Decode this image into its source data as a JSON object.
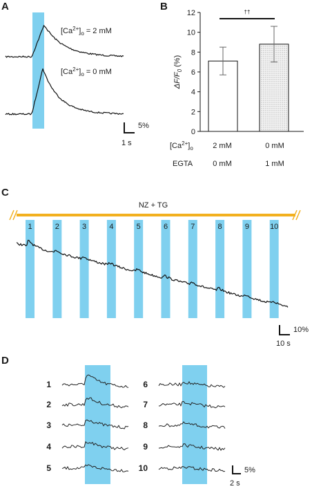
{
  "colors": {
    "stim": "#7fd0ef",
    "bar_line": "#f2b01e",
    "trace": "#111111",
    "bar_fill_b": "#e6e6e6"
  },
  "panels": {
    "a": {
      "label": "A",
      "trace1_label_pre": "[Ca",
      "trace1_label_sup": "2+",
      "trace1_label_post": "]",
      "trace1_label_sub": "o",
      "trace1_label_val": " = 2 mM",
      "trace2_label_pre": "[Ca",
      "trace2_label_sup": "2+",
      "trace2_label_post": "]",
      "trace2_label_sub": "o",
      "trace2_label_val": " = 0 mM",
      "scale_y": "5%",
      "scale_x": "1 s"
    },
    "b": {
      "label": "B",
      "ylabel_delta": "ΔF/F",
      "ylabel_sub": "0",
      "ylabel_unit": " (%)",
      "sig_mark": "††",
      "row1_label_pre": "[Ca",
      "row1_label_sup": "2+",
      "row1_label_post": "]",
      "row1_label_sub": "o",
      "row1_values": [
        "2 mM",
        "0 mM"
      ],
      "row2_label": "EGTA",
      "row2_values": [
        "0 mM",
        "1 mM"
      ]
    },
    "c": {
      "label": "C",
      "treatment": "NZ + TG",
      "stim_numbers": [
        "1",
        "2",
        "3",
        "4",
        "5",
        "6",
        "7",
        "8",
        "9",
        "10"
      ],
      "scale_y": "10%",
      "scale_x": "10 s"
    },
    "d": {
      "label": "D",
      "left_numbers": [
        "1",
        "2",
        "3",
        "4",
        "5"
      ],
      "right_numbers": [
        "6",
        "7",
        "8",
        "9",
        "10"
      ],
      "scale_y": "5%",
      "scale_x": "2 s"
    }
  },
  "chart_data": {
    "type": "bar",
    "categories": [
      "2 mM [Ca2+]o / 0 mM EGTA",
      "0 mM [Ca2+]o / 1 mM EGTA"
    ],
    "values": [
      7.1,
      8.8
    ],
    "error": [
      1.4,
      1.8
    ],
    "ylim": [
      0,
      12
    ],
    "yticks": [
      0,
      2,
      4,
      6,
      8,
      10,
      12
    ],
    "ylabel": "ΔF/F0 (%)",
    "annotation": "††",
    "grid": false
  }
}
